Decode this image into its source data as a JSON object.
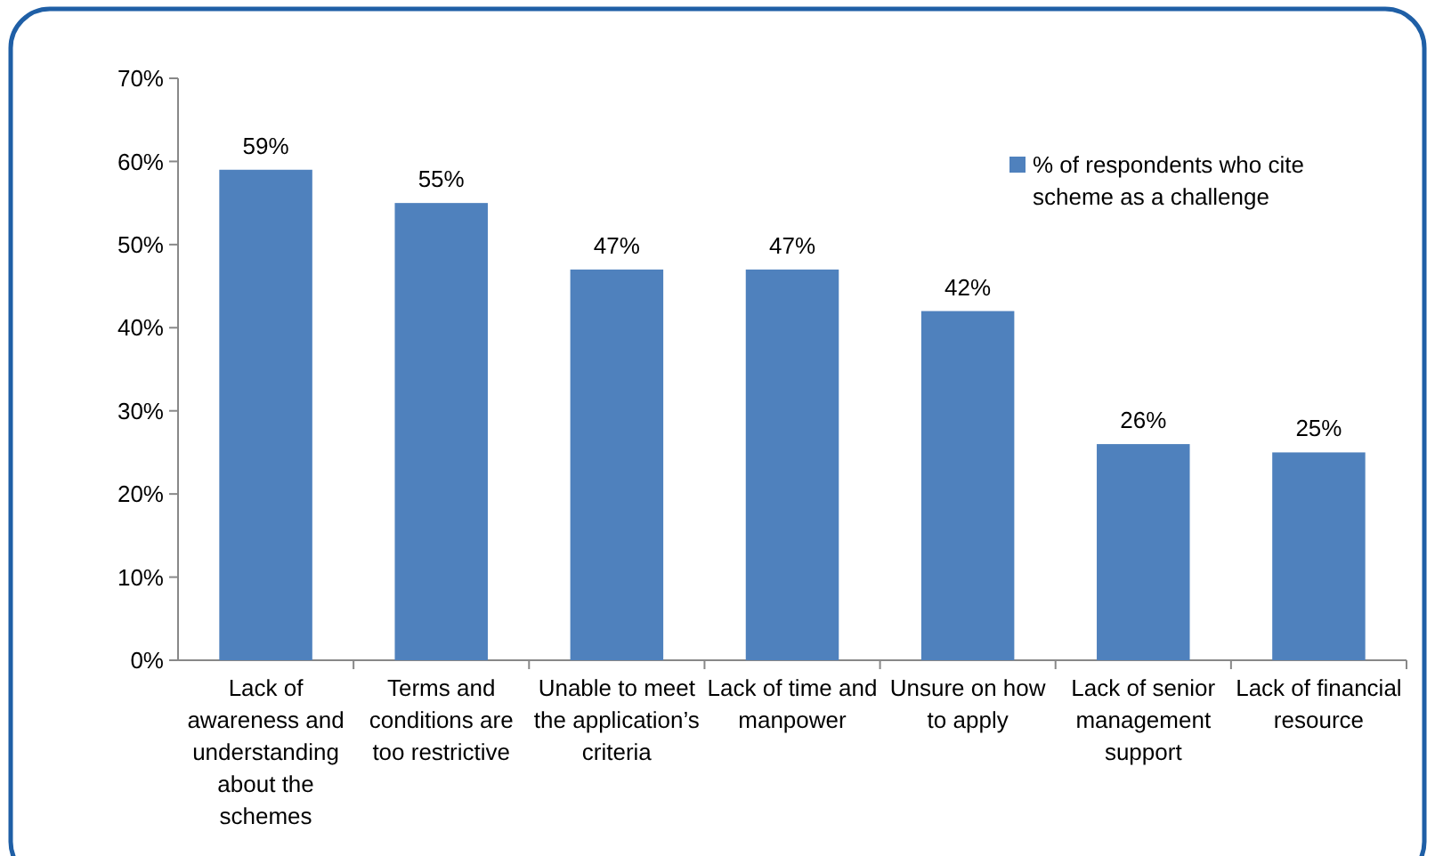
{
  "chart_data": {
    "type": "bar",
    "categories": [
      "Lack of awareness and understanding about the schemes",
      "Terms and conditions are too restrictive",
      "Unable to meet the application’s criteria",
      "Lack of time and manpower",
      "Unsure on how to apply",
      "Lack of senior management support",
      "Lack of financial resource"
    ],
    "series": [
      {
        "name": "% of respondents who cite scheme as a challenge",
        "color": "#4f81bd",
        "values": [
          59,
          55,
          47,
          47,
          42,
          26,
          25
        ]
      }
    ],
    "value_labels": [
      "59%",
      "55%",
      "47%",
      "47%",
      "42%",
      "26%",
      "25%"
    ],
    "ylim": [
      0,
      70
    ],
    "yticks": [
      {
        "value": 0,
        "label": "0%"
      },
      {
        "value": 10,
        "label": "10%"
      },
      {
        "value": 20,
        "label": "20%"
      },
      {
        "value": 30,
        "label": "30%"
      },
      {
        "value": 40,
        "label": "40%"
      },
      {
        "value": 50,
        "label": "50%"
      },
      {
        "value": 60,
        "label": "60%"
      },
      {
        "value": 70,
        "label": "70%"
      }
    ],
    "grid": false,
    "legend": "top right"
  }
}
